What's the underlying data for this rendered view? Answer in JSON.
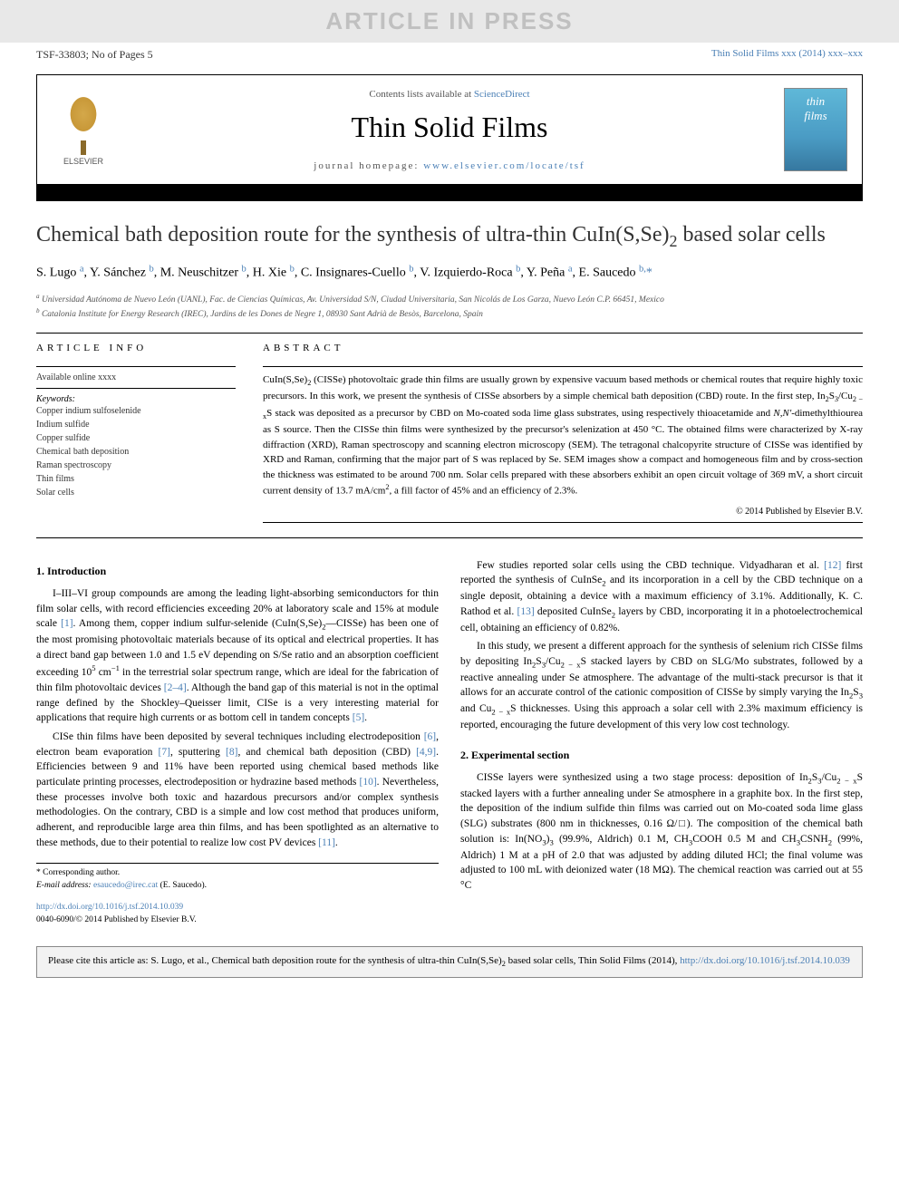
{
  "watermark": "ARTICLE IN PRESS",
  "top_meta_left": "TSF-33803; No of Pages 5",
  "top_meta_right": "Thin Solid Films xxx (2014) xxx–xxx",
  "header": {
    "contents_prefix": "Contents lists available at ",
    "contents_link": "ScienceDirect",
    "journal": "Thin Solid Films",
    "homepage_prefix": "journal homepage: ",
    "homepage_link": "www.elsevier.com/locate/tsf",
    "publisher_label": "ELSEVIER",
    "cover_line1": "thin",
    "cover_line2": "films"
  },
  "title_html": "Chemical bath deposition route for the synthesis of ultra-thin CuIn(S,Se)<sub>2</sub> based solar cells",
  "authors_html": "S. Lugo <a href='#'><sup>a</sup></a>, Y. Sánchez <a href='#'><sup>b</sup></a>, M. Neuschitzer <a href='#'><sup>b</sup></a>, H. Xie <a href='#'><sup>b</sup></a>, C. Insignares-Cuello <a href='#'><sup>b</sup></a>, V. Izquierdo-Roca <a href='#'><sup>b</sup></a>, Y. Peña <a href='#'><sup>a</sup></a>, E. Saucedo <a href='#'><sup>b,</sup></a><a href='#'>*</a>",
  "affils": {
    "a": "Universidad Autónoma de Nuevo León (UANL), Fac. de Ciencias Químicas, Av. Universidad S/N, Ciudad Universitaria, San Nicolás de Los Garza, Nuevo León C.P. 66451, Mexico",
    "b": "Catalonia Institute for Energy Research (IREC), Jardins de les Dones de Negre 1, 08930 Sant Adrià de Besòs, Barcelona, Spain"
  },
  "info": {
    "head": "ARTICLE INFO",
    "available": "Available online xxxx",
    "kw_head": "Keywords:",
    "keywords": [
      "Copper indium sulfoselenide",
      "Indium sulfide",
      "Copper sulfide",
      "Chemical bath deposition",
      "Raman spectroscopy",
      "Thin films",
      "Solar cells"
    ]
  },
  "abstract": {
    "head": "ABSTRACT",
    "text_html": "CuIn(S,Se)<sub>2</sub> (CISSe) photovoltaic grade thin films are usually grown by expensive vacuum based methods or chemical routes that require highly toxic precursors. In this work, we present the synthesis of CISSe absorbers by a simple chemical bath deposition (CBD) route. In the first step, In<sub>2</sub>S<sub>3</sub>/Cu<sub>2 − x</sub>S stack was deposited as a precursor by CBD on Mo-coated soda lime glass substrates, using respectively thioacetamide and <i>N,N'</i>-dimethylthiourea as S source. Then the CISSe thin films were synthesized by the precursor's selenization at 450 °C. The obtained films were characterized by X-ray diffraction (XRD), Raman spectroscopy and scanning electron microscopy (SEM). The tetragonal chalcopyrite structure of CISSe was identified by XRD and Raman, confirming that the major part of S was replaced by Se. SEM images show a compact and homogeneous film and by cross-section the thickness was estimated to be around 700 nm. Solar cells prepared with these absorbers exhibit an open circuit voltage of 369 mV, a short circuit current density of 13.7 mA/cm<sup>2</sup>, a fill factor of 45% and an efficiency of 2.3%.",
    "copyright": "© 2014 Published by Elsevier B.V."
  },
  "sections": {
    "intro_head": "1. Introduction",
    "intro_p1_html": "I–III–VI group compounds are among the leading light-absorbing semiconductors for thin film solar cells, with record efficiencies exceeding 20% at laboratory scale and 15% at module scale <a href='#'>[1]</a>. Among them, copper indium sulfur-selenide (CuIn(S,Se)<sub>2</sub>—CISSe) has been one of the most promising photovoltaic materials because of its optical and electrical properties. It has a direct band gap between 1.0 and 1.5 eV depending on S/Se ratio and an absorption coefficient exceeding 10<sup>5</sup> cm<sup>−1</sup> in the terrestrial solar spectrum range, which are ideal for the fabrication of thin film photovoltaic devices <a href='#'>[2–4]</a>. Although the band gap of this material is not in the optimal range defined by the Shockley–Queisser limit, CISe is a very interesting material for applications that require high currents or as bottom cell in tandem concepts <a href='#'>[5]</a>.",
    "intro_p2_html": "CISe thin films have been deposited by several techniques including electrodeposition <a href='#'>[6]</a>, electron beam evaporation <a href='#'>[7]</a>, sputtering <a href='#'>[8]</a>, and chemical bath deposition (CBD) <a href='#'>[4,9]</a>. Efficiencies between 9 and 11% have been reported using chemical based methods like particulate printing processes, electrodeposition or hydrazine based methods <a href='#'>[10]</a>. Nevertheless, these processes involve both toxic and hazardous precursors and/or complex synthesis methodologies. On the contrary, CBD is a simple and low cost method that produces uniform, adherent, and reproducible large area thin films, and has been spotlighted as an alternative to these methods, due to their potential to realize low cost PV devices <a href='#'>[11]</a>.",
    "intro_p3_html": "Few studies reported solar cells using the CBD technique. Vidyadharan et al. <a href='#'>[12]</a> first reported the synthesis of CuInSe<sub>2</sub> and its incorporation in a cell by the CBD technique on a single deposit, obtaining a device with a maximum efficiency of 3.1%. Additionally, K. C. Rathod et al. <a href='#'>[13]</a> deposited CuInSe<sub>2</sub> layers by CBD, incorporating it in a photoelectrochemical cell, obtaining an efficiency of 0.82%.",
    "intro_p4_html": "In this study, we present a different approach for the synthesis of selenium rich CISSe films by depositing In<sub>2</sub>S<sub>3</sub>/Cu<sub>2 − x</sub>S stacked layers by CBD on SLG/Mo substrates, followed by a reactive annealing under Se atmosphere. The advantage of the multi-stack precursor is that it allows for an accurate control of the cationic composition of CISSe by simply varying the In<sub>2</sub>S<sub>3</sub> and Cu<sub>2 − x</sub>S thicknesses. Using this approach a solar cell with 2.3% maximum efficiency is reported, encouraging the future development of this very low cost technology.",
    "exp_head": "2. Experimental section",
    "exp_p1_html": "CISSe layers were synthesized using a two stage process: deposition of In<sub>2</sub>S<sub>3</sub>/Cu<sub>2 − x</sub>S stacked layers with a further annealing under Se atmosphere in a graphite box. In the first step, the deposition of the indium sulfide thin films was carried out on Mo-coated soda lime glass (SLG) substrates (800 nm in thicknesses, 0.16 Ω/□). The composition of the chemical bath solution is: In(NO<sub>3</sub>)<sub>3</sub> (99.9%, Aldrich) 0.1 M, CH<sub>3</sub>COOH 0.5 M and CH<sub>3</sub>CSNH<sub>2</sub> (99%, Aldrich) 1 M at a pH of 2.0 that was adjusted by adding diluted HCl; the final volume was adjusted to 100 mL with deionized water (18 MΩ). The chemical reaction was carried out at 55 °C"
  },
  "footnote": {
    "corr": "* Corresponding author.",
    "email_label": "E-mail address: ",
    "email": "esaucedo@irec.cat",
    "email_who": " (E. Saucedo)."
  },
  "doi": {
    "link": "http://dx.doi.org/10.1016/j.tsf.2014.10.039",
    "issn_line": "0040-6090/© 2014 Published by Elsevier B.V."
  },
  "citebox_html": "Please cite this article as: S. Lugo, et al., Chemical bath deposition route for the synthesis of ultra-thin CuIn(S,Se)<sub>2</sub> based solar cells, Thin Solid Films (2014), <a href='#'>http://dx.doi.org/10.1016/j.tsf.2014.10.039</a>",
  "colors": {
    "link": "#4a7fb5",
    "watermark_bg": "#e8e8e8",
    "watermark_fg": "#c0c0c0",
    "citebox_bg": "#f2f2f2"
  }
}
